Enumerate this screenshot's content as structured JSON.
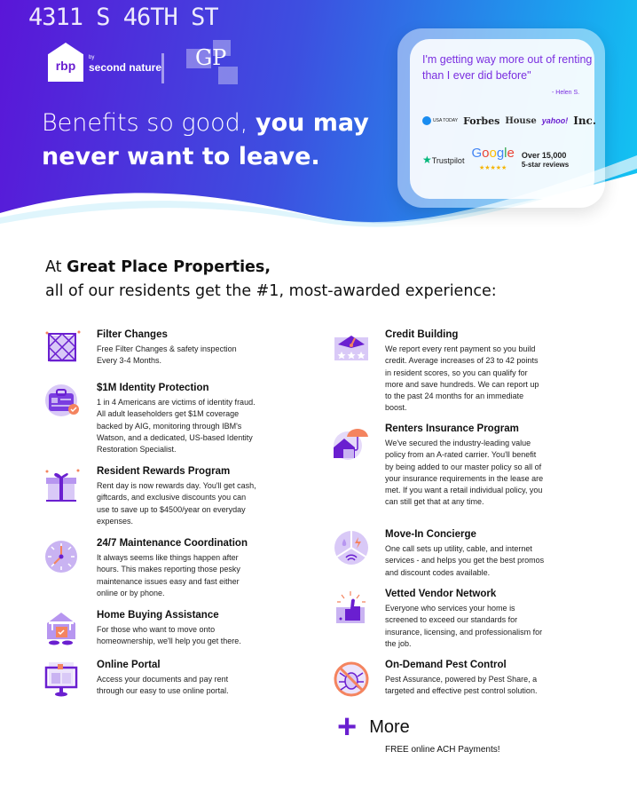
{
  "header": {
    "address": "4311 S 46TH ST",
    "logo_rbp": "rbp",
    "logo_by": "by",
    "logo_second_nature": "second nature",
    "logo_gp": "GP",
    "headline_light": "Benefits so good, ",
    "headline_bold_1": "you may",
    "headline_bold_2": "never want to leave."
  },
  "testimonial": {
    "quote": "I'm getting way more out of renting than I ever did before\"",
    "author": "- Helen S.",
    "press": [
      "USA TODAY",
      "Forbes",
      "House",
      "yahoo!",
      "Inc."
    ],
    "trustpilot": "Trustpilot",
    "google": "Google",
    "reviews_count": "Over 15,000",
    "reviews_label": "5-star reviews"
  },
  "section": {
    "title_pre": "At ",
    "title_company": "Great Place Properties,",
    "title_line2": "all of our residents get the #1, most-awarded experience:"
  },
  "left_items": [
    {
      "title": "Filter Changes",
      "body": "Free Filter Changes & safety inspection Every 3-4 Months.",
      "icon": "filter-icon"
    },
    {
      "title": "$1M Identity Protection",
      "body": "1 in 4 Americans are victims of identity fraud. All adult leaseholders get $1M coverage backed by AIG, monitoring through IBM's Watson, and a dedicated, US-based Identity Restoration Specialist.",
      "icon": "id-badge-icon"
    },
    {
      "title": "Resident Rewards Program",
      "body": "Rent day is now rewards day. You'll get cash, giftcards, and exclusive discounts you can use to save up to $4500/year on everyday expenses.",
      "icon": "gift-icon"
    },
    {
      "title": "24/7 Maintenance Coordination",
      "body": "It always seems like things happen after hours. This makes reporting those pesky maintenance issues easy and fast either online or by phone.",
      "icon": "clock-icon"
    },
    {
      "title": "Home Buying Assistance",
      "body": "For those who want to move onto homeownership, we'll help you get there.",
      "icon": "home-sale-icon"
    },
    {
      "title": "Online Portal",
      "body": "Access your documents and pay rent through our easy to use online portal.",
      "icon": "computer-icon"
    }
  ],
  "right_items": [
    {
      "title": "Credit Building",
      "body": "We report every rent payment so you build credit. Average increases of 23 to 42 points in resident scores, so you can qualify for more and save hundreds. We can report up to the past 24 months for an immediate boost.",
      "icon": "credit-gauge-icon"
    },
    {
      "title": "Renters Insurance Program",
      "body": "We've secured the industry-leading value policy from an A-rated carrier. You'll benefit by being added to our master policy so all of your insurance requirements in the lease are met. If you want a retail individual policy, you can still get that at any time.",
      "icon": "umbrella-house-icon"
    },
    {
      "title": "Move-In Concierge",
      "body": "One call sets up utility, cable, and internet services - and helps you get the best promos and discount codes available.",
      "icon": "utilities-icon"
    },
    {
      "title": "Vetted Vendor Network",
      "body": "Everyone who services your home is screened to exceed our standards for insurance, licensing, and professionalism for the job.",
      "icon": "thumbs-up-icon"
    },
    {
      "title": "On-Demand Pest Control",
      "body": "Pest Assurance, powered by Pest Share, a targeted and effective pest control solution.",
      "icon": "no-bug-icon"
    }
  ],
  "more": {
    "label": "More",
    "note": "FREE online ACH Payments!"
  },
  "colors": {
    "accent": "#6a1fd0",
    "orange": "#f4845f",
    "lavender": "#c9b3f2",
    "gradient_start": "#5a16d8",
    "gradient_end": "#12c6f2"
  }
}
